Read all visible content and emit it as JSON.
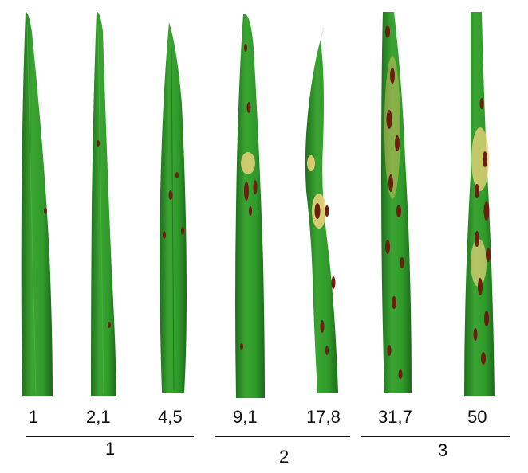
{
  "colors": {
    "leaf_green": "#2f9a2a",
    "leaf_dark_green": "#1f6f1c",
    "lesion_brown": "#6b1f10",
    "chlorosis_yellow": "#e8d27a",
    "label_text": "#111111"
  },
  "leaves": [
    {
      "label": "1",
      "group": "1",
      "lesion_density": "very-low"
    },
    {
      "label": "2,1",
      "group": "1",
      "lesion_density": "very-low"
    },
    {
      "label": "4,5",
      "group": "1",
      "lesion_density": "low"
    },
    {
      "label": "9,1",
      "group": "2",
      "lesion_density": "moderate"
    },
    {
      "label": "17,8",
      "group": "2",
      "lesion_density": "moderate-high"
    },
    {
      "label": "31,7",
      "group": "3",
      "lesion_density": "high"
    },
    {
      "label": "50",
      "group": "3",
      "lesion_density": "very-high"
    }
  ],
  "groups": [
    {
      "label": "1"
    },
    {
      "label": "2"
    },
    {
      "label": "3"
    }
  ]
}
